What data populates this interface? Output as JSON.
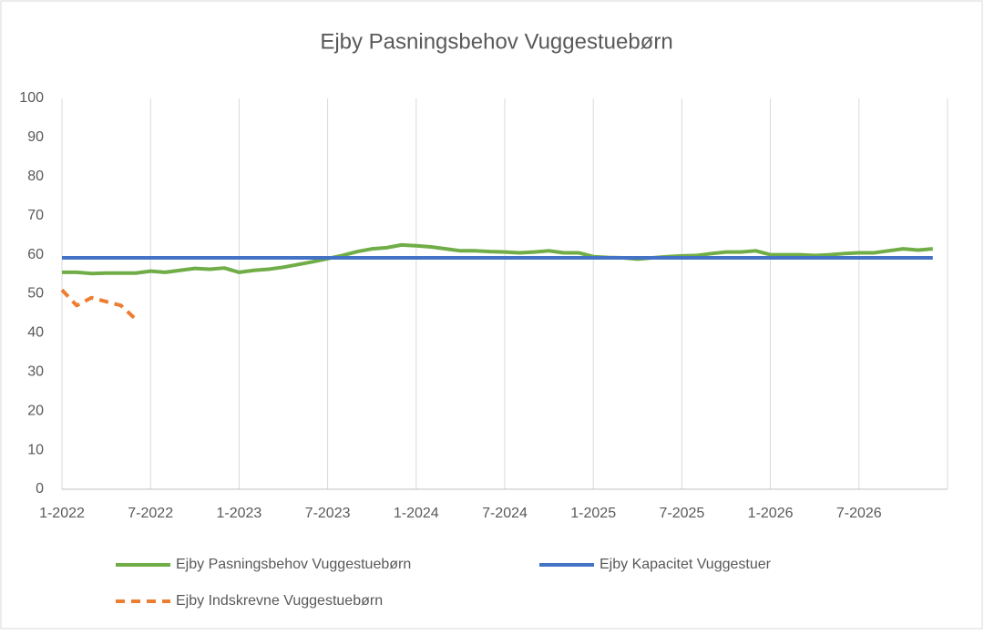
{
  "chart_data": {
    "type": "line",
    "title": "Ejby Pasningsbehov Vuggestuebørn",
    "categories": [
      "1-2022",
      null,
      null,
      null,
      null,
      null,
      "7-2022",
      null,
      null,
      null,
      null,
      null,
      "1-2023",
      null,
      null,
      null,
      null,
      null,
      "7-2023",
      null,
      null,
      null,
      null,
      null,
      "1-2024",
      null,
      null,
      null,
      null,
      null,
      "7-2024",
      null,
      null,
      null,
      null,
      null,
      "1-2025",
      null,
      null,
      null,
      null,
      null,
      "7-2025",
      null,
      null,
      null,
      null,
      null,
      "1-2026",
      null,
      null,
      null,
      null,
      null,
      "7-2026",
      null,
      null,
      null,
      null,
      null,
      null
    ],
    "series": [
      {
        "name": "Ejby Pasningsbehov Vuggestuebørn",
        "color": "#70ad47",
        "dash": false,
        "values": [
          55.5,
          55.5,
          55.2,
          55.3,
          55.3,
          55.3,
          55.8,
          55.5,
          56,
          56.5,
          56.3,
          56.6,
          55.5,
          56,
          56.3,
          56.8,
          57.5,
          58.2,
          59,
          59.8,
          60.8,
          61.5,
          61.8,
          62.5,
          62.3,
          62,
          61.5,
          61,
          61,
          60.8,
          60.7,
          60.5,
          60.7,
          61,
          60.5,
          60.5,
          59.5,
          59.3,
          59.2,
          58.9,
          59.2,
          59.5,
          59.7,
          59.8,
          60.3,
          60.7,
          60.7,
          61,
          60,
          60,
          60,
          59.8,
          60,
          60.3,
          60.5,
          60.5,
          61,
          61.5,
          61.2,
          61.5,
          null
        ]
      },
      {
        "name": "Ejby Kapacitet Vuggestuer",
        "color": "#4472c4",
        "dash": false,
        "values": [
          59.2,
          59.2,
          59.2,
          59.2,
          59.2,
          59.2,
          59.2,
          59.2,
          59.2,
          59.2,
          59.2,
          59.2,
          59.2,
          59.2,
          59.2,
          59.2,
          59.2,
          59.2,
          59.2,
          59.2,
          59.2,
          59.2,
          59.2,
          59.2,
          59.2,
          59.2,
          59.2,
          59.2,
          59.2,
          59.2,
          59.2,
          59.2,
          59.2,
          59.2,
          59.2,
          59.2,
          59.2,
          59.2,
          59.2,
          59.2,
          59.2,
          59.2,
          59.2,
          59.2,
          59.2,
          59.2,
          59.2,
          59.2,
          59.2,
          59.2,
          59.2,
          59.2,
          59.2,
          59.2,
          59.2,
          59.2,
          59.2,
          59.2,
          59.2,
          59.2,
          null
        ]
      },
      {
        "name": "Ejby Indskrevne Vuggestuebørn",
        "color": "#ed7d31",
        "dash": true,
        "values": [
          51,
          47,
          49,
          48,
          47,
          43.5,
          null,
          null,
          null,
          null,
          null,
          null,
          null,
          null,
          null,
          null,
          null,
          null,
          null,
          null,
          null,
          null,
          null,
          null,
          null,
          null,
          null,
          null,
          null,
          null,
          null,
          null,
          null,
          null,
          null,
          null,
          null,
          null,
          null,
          null,
          null,
          null,
          null,
          null,
          null,
          null,
          null,
          null,
          null,
          null,
          null,
          null,
          null,
          null,
          null,
          null,
          null,
          null,
          null,
          null,
          null
        ]
      }
    ],
    "ylim": [
      0,
      100
    ],
    "yticks": [
      0,
      10,
      20,
      30,
      40,
      50,
      60,
      70,
      80,
      90,
      100
    ],
    "grid": true,
    "legend": "bottom"
  }
}
